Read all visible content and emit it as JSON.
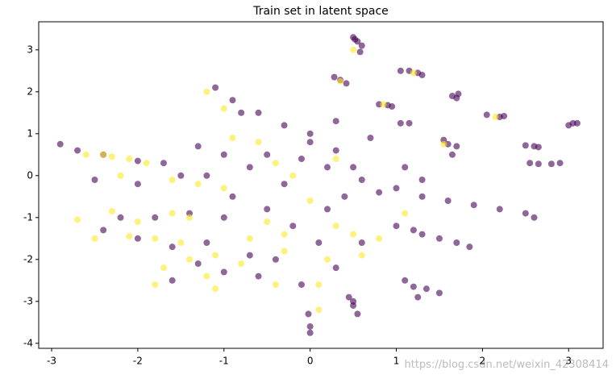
{
  "chart_data": {
    "type": "scatter",
    "title": "Train set in latent space",
    "watermark": "https://blog.csdn.net/weixin_42308414",
    "xlim": [
      -3.15,
      3.4
    ],
    "ylim": [
      -4.12,
      3.67
    ],
    "xticks": [
      -3,
      -2,
      -1,
      0,
      1,
      2,
      3
    ],
    "yticks": [
      -4,
      -3,
      -2,
      -1,
      0,
      1,
      2,
      3
    ],
    "series": [
      {
        "color": "#440154",
        "x": [
          0.5,
          0.55,
          0.6,
          0.58,
          0.52,
          1.05,
          1.15,
          1.25,
          1.3,
          1.65,
          1.72,
          1.7,
          0.8,
          0.9,
          0.95,
          1.05,
          1.15,
          2.05,
          2.2,
          2.25,
          3.0,
          3.05,
          3.1,
          2.5,
          2.6,
          2.65,
          2.55,
          2.65,
          2.8,
          2.9,
          1.55,
          1.6,
          1.7,
          1.65,
          0.28,
          0.35,
          0.42,
          1.0,
          1.3,
          1.6,
          1.9,
          2.2,
          2.5,
          2.6,
          1.0,
          1.3,
          1.5,
          1.7,
          1.85,
          1.2,
          1.1,
          1.2,
          1.35,
          1.5,
          1.25,
          0.45,
          0.5,
          0.55,
          0.5,
          -0.02,
          0,
          0,
          -0.5,
          0,
          0.3,
          0.5,
          -0.3,
          0.2,
          -0.2,
          0.1,
          0.3,
          -0.4,
          -0.1,
          0.6,
          0.8,
          0.7,
          -0.8,
          -1.1,
          -0.9,
          -0.6,
          -0.3,
          0.0,
          0.3,
          -1.3,
          -1.0,
          -0.7,
          -1.5,
          -2.0,
          -2.5,
          -2.7,
          -2.4,
          -2.0,
          -1.7,
          -2.2,
          -1.8,
          -1.4,
          -1.0,
          -2.4,
          -2.0,
          -1.6,
          -1.2,
          -1.6,
          -1.3,
          -1.0,
          -0.7,
          -0.6,
          -1.2,
          -0.9,
          -0.5,
          -2.9,
          0.6,
          1.1,
          1.3,
          0.4,
          0.2,
          -0.1
        ],
        "values": [
          3.3,
          3.2,
          3.1,
          2.95,
          3.25,
          2.5,
          2.5,
          2.45,
          2.4,
          1.9,
          1.95,
          1.85,
          1.7,
          1.68,
          1.65,
          1.25,
          1.25,
          1.45,
          1.4,
          1.42,
          1.2,
          1.25,
          1.25,
          0.72,
          0.7,
          0.68,
          0.3,
          0.28,
          0.28,
          0.3,
          0.85,
          0.75,
          0.7,
          0.5,
          2.35,
          2.28,
          2.2,
          -0.3,
          -0.5,
          -0.6,
          -0.7,
          -0.8,
          -0.9,
          -1.0,
          -1.2,
          -1.4,
          -1.5,
          -1.6,
          -1.7,
          -1.3,
          -2.5,
          -2.65,
          -2.7,
          -2.8,
          -2.9,
          -2.9,
          -3.1,
          -3.3,
          -3.0,
          -3.3,
          -3.6,
          -3.75,
          0.5,
          0.8,
          0.6,
          0.2,
          -0.2,
          -0.8,
          -1.2,
          -1.6,
          -2.2,
          -2.0,
          -2.6,
          -1.6,
          -0.4,
          0.9,
          1.5,
          2.1,
          1.8,
          1.5,
          1.2,
          1.0,
          1.3,
          0.7,
          0.5,
          0.2,
          0.0,
          -0.2,
          -0.1,
          0.6,
          0.5,
          0.35,
          0.3,
          -1.0,
          -1.0,
          -0.9,
          -1.0,
          -1.3,
          -1.5,
          -1.7,
          -1.6,
          -2.5,
          -2.1,
          -2.3,
          -1.9,
          -2.4,
          0.0,
          -0.5,
          -0.8,
          0.75,
          -0.1,
          0.2,
          -0.1,
          -0.5,
          0.2,
          0.4
        ]
      },
      {
        "color": "#fde725",
        "x": [
          -2.6,
          -2.3,
          -2.1,
          -1.9,
          -1.6,
          -1.3,
          -1.0,
          -2.7,
          -2.3,
          -2.0,
          -1.6,
          -2.5,
          -2.1,
          -1.8,
          -1.5,
          -1.4,
          -1.1,
          -1.8,
          -1.1,
          -1.2,
          -0.8,
          -0.7,
          -0.5,
          -0.4,
          -0.3,
          0.1,
          0.2,
          0.3,
          0.5,
          0.6,
          0.0,
          -0.2,
          -0.6,
          -1.0,
          -0.9,
          -0.4,
          0.3,
          -1.2,
          0.5,
          0.35,
          1.2,
          2.15,
          0.85,
          1.55,
          1.1,
          0.1,
          -0.3,
          0.8,
          -1.4,
          -2.2,
          -2.4,
          -1.7
        ],
        "values": [
          0.5,
          0.45,
          0.4,
          0.3,
          -0.1,
          -0.2,
          -0.3,
          -1.05,
          -0.85,
          -1.1,
          -0.9,
          -1.5,
          -1.45,
          -1.5,
          -1.6,
          -2.0,
          -1.9,
          -2.6,
          -2.7,
          -2.4,
          -2.1,
          -1.5,
          -1.1,
          -2.6,
          -1.4,
          -2.6,
          -2.0,
          -1.2,
          -1.4,
          -1.9,
          -0.6,
          0.0,
          0.8,
          1.6,
          0.9,
          0.3,
          0.4,
          2.0,
          3.0,
          2.25,
          2.45,
          1.4,
          1.7,
          0.75,
          -0.9,
          -3.2,
          -1.8,
          -1.5,
          -1.0,
          0.0,
          0.5,
          -2.2
        ]
      }
    ]
  }
}
